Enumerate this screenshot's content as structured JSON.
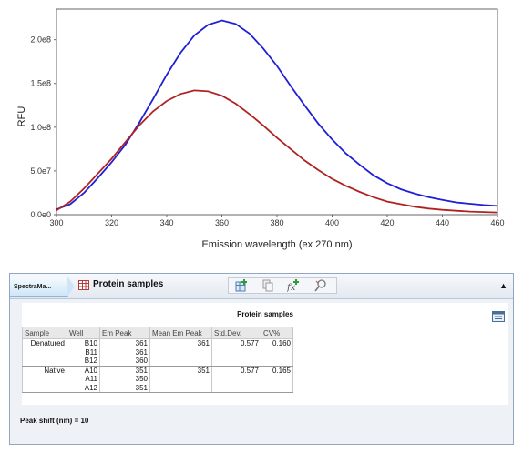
{
  "chart_data": {
    "type": "line",
    "xlabel": "Emission wavelength (ex 270 nm)",
    "ylabel": "RFU",
    "xlim": [
      300,
      460
    ],
    "ylim": [
      0,
      235000000
    ],
    "x_ticks": [
      "300",
      "320",
      "340",
      "360",
      "380",
      "400",
      "420",
      "440",
      "460"
    ],
    "y_ticks": [
      "0.0e0",
      "5.0e7",
      "1.0e8",
      "1.5e8",
      "2.0e8"
    ],
    "grid": false,
    "series": [
      {
        "color": "#1f1fd6",
        "x": [
          300,
          305,
          310,
          315,
          320,
          325,
          330,
          335,
          340,
          345,
          350,
          355,
          360,
          365,
          370,
          375,
          380,
          385,
          390,
          395,
          400,
          405,
          410,
          415,
          420,
          425,
          430,
          435,
          440,
          445,
          450,
          455,
          460
        ],
        "y": [
          6000000,
          12000000,
          25000000,
          42000000,
          60000000,
          80000000,
          105000000,
          132000000,
          160000000,
          185000000,
          205000000,
          217000000,
          222000000,
          218000000,
          207000000,
          190000000,
          170000000,
          147000000,
          125000000,
          104000000,
          86000000,
          70000000,
          57000000,
          45000000,
          36000000,
          29000000,
          24000000,
          20000000,
          17000000,
          14000000,
          12500000,
          11000000,
          10000000
        ]
      },
      {
        "color": "#b02222",
        "x": [
          300,
          305,
          310,
          315,
          320,
          325,
          330,
          335,
          340,
          345,
          350,
          355,
          360,
          365,
          370,
          375,
          380,
          385,
          390,
          395,
          400,
          405,
          410,
          415,
          420,
          425,
          430,
          435,
          440,
          445,
          450,
          455,
          460
        ],
        "y": [
          5000000,
          15000000,
          30000000,
          47000000,
          64000000,
          83000000,
          102000000,
          118000000,
          130000000,
          138000000,
          142000000,
          141000000,
          136000000,
          127000000,
          115000000,
          102000000,
          88000000,
          75000000,
          62000000,
          51000000,
          41000000,
          33000000,
          26000000,
          20000000,
          15000000,
          12000000,
          9000000,
          7000000,
          5500000,
          4500000,
          3500000,
          3000000,
          2500000
        ]
      }
    ]
  },
  "panel": {
    "app_tab": "SpectraMa...",
    "section_title": "Protein samples",
    "toolbar_icons": [
      "add-plot-icon",
      "copy-icon",
      "formula-icon",
      "zoom-icon"
    ],
    "collapse_icon": "▲"
  },
  "table": {
    "title": "Protein samples",
    "export_icon": "export-report-icon",
    "headers": [
      "Sample",
      "Well",
      "Em Peak",
      "Mean Em Peak",
      "Std.Dev.",
      "CV%"
    ],
    "groups": [
      {
        "sample": "Denatured",
        "mean": "361",
        "std": "0.577",
        "cv": "0.160",
        "rows": [
          {
            "well": "B10",
            "peak": "361"
          },
          {
            "well": "B11",
            "peak": "361"
          },
          {
            "well": "B12",
            "peak": "360"
          }
        ]
      },
      {
        "sample": "Native",
        "mean": "351",
        "std": "0.577",
        "cv": "0.165",
        "rows": [
          {
            "well": "A10",
            "peak": "351"
          },
          {
            "well": "A11",
            "peak": "350"
          },
          {
            "well": "A12",
            "peak": "351"
          }
        ]
      }
    ]
  },
  "peak_shift": {
    "label": "Peak shift (nm) =",
    "value": "10"
  }
}
